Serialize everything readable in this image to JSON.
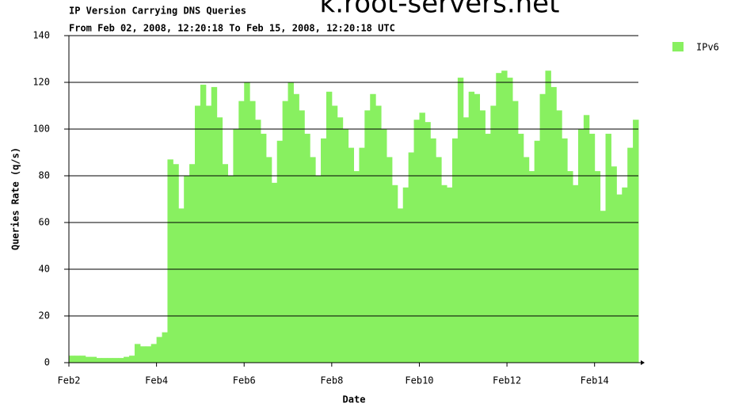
{
  "chart_data": {
    "type": "bar",
    "header": "k.root-servers.net",
    "title": "IP Version Carrying DNS Queries",
    "subtitle": "From Feb 02, 2008, 12:20:18 To Feb 15, 2008, 12:20:18 UTC",
    "x_label": "Date",
    "y_label": "Queries Rate (q/s)",
    "x": [
      0,
      0.125,
      0.25,
      0.375,
      0.5,
      0.625,
      0.75,
      0.875,
      1,
      1.125,
      1.25,
      1.375,
      1.5,
      1.625,
      1.75,
      1.875,
      2,
      2.125,
      2.25,
      2.375,
      2.5,
      2.625,
      2.75,
      2.875,
      3,
      3.125,
      3.25,
      3.375,
      3.5,
      3.625,
      3.75,
      3.875,
      4,
      4.125,
      4.25,
      4.375,
      4.5,
      4.625,
      4.75,
      4.875,
      5,
      5.125,
      5.25,
      5.375,
      5.5,
      5.625,
      5.75,
      5.875,
      6,
      6.125,
      6.25,
      6.375,
      6.5,
      6.625,
      6.75,
      6.875,
      7,
      7.125,
      7.25,
      7.375,
      7.5,
      7.625,
      7.75,
      7.875,
      8,
      8.125,
      8.25,
      8.375,
      8.5,
      8.625,
      8.75,
      8.875,
      9,
      9.125,
      9.25,
      9.375,
      9.5,
      9.625,
      9.75,
      9.875,
      10,
      10.125,
      10.25,
      10.375,
      10.5,
      10.625,
      10.75,
      10.875,
      11,
      11.125,
      11.25,
      11.375,
      11.5,
      11.625,
      11.75,
      11.875,
      12,
      12.125,
      12.25,
      12.375,
      12.5,
      12.625,
      12.75,
      12.875
    ],
    "series": [
      {
        "name": "IPv6",
        "color": "#88f060",
        "values": [
          3,
          3,
          3,
          2.5,
          2.5,
          2,
          2,
          2,
          2,
          2,
          2.5,
          3,
          8,
          7,
          7,
          8,
          11,
          13,
          87,
          85,
          66,
          80,
          85,
          110,
          119,
          110,
          118,
          105,
          85,
          80,
          100,
          112,
          120,
          112,
          104,
          98,
          88,
          77,
          95,
          112,
          120,
          115,
          108,
          98,
          88,
          80,
          96,
          116,
          110,
          105,
          100,
          92,
          82,
          92,
          108,
          115,
          110,
          100,
          88,
          76,
          66,
          75,
          90,
          104,
          107,
          103,
          96,
          88,
          76,
          75,
          96,
          122,
          105,
          116,
          115,
          108,
          98,
          110,
          124,
          125,
          122,
          112,
          98,
          88,
          82,
          95,
          115,
          125,
          118,
          108,
          96,
          82,
          76,
          100,
          106,
          98,
          82,
          65,
          98,
          84,
          72,
          75,
          92,
          104
        ]
      }
    ],
    "bar_width": 0.125,
    "xlim": [
      0,
      13
    ],
    "xticks": [
      {
        "value": 0,
        "label": "Feb2"
      },
      {
        "value": 2,
        "label": "Feb4"
      },
      {
        "value": 4,
        "label": "Feb6"
      },
      {
        "value": 6,
        "label": "Feb8"
      },
      {
        "value": 8,
        "label": "Feb10"
      },
      {
        "value": 10,
        "label": "Feb12"
      },
      {
        "value": 12,
        "label": "Feb14"
      }
    ],
    "ylim": [
      0,
      140
    ],
    "yticks": [
      0,
      20,
      40,
      60,
      80,
      100,
      120,
      140
    ],
    "grid": true,
    "legend": "right"
  }
}
